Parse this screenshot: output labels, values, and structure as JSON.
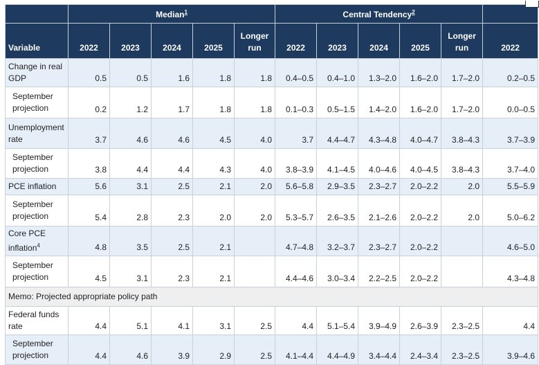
{
  "header": {
    "median_label": "Median",
    "median_footnote": "1",
    "ct_label": "Central Tendency",
    "ct_footnote": "2",
    "variable_label": "Variable",
    "columns": [
      "2022",
      "2023",
      "2024",
      "2025",
      "Longer run",
      "2022",
      "2023",
      "2024",
      "2025",
      "Longer run",
      "2022"
    ]
  },
  "rows": [
    {
      "label": "Change in real GDP",
      "type": "main",
      "shade": "blue",
      "values": [
        "0.5",
        "0.5",
        "1.6",
        "1.8",
        "1.8",
        "0.4–0.5",
        "0.4–1.0",
        "1.3–2.0",
        "1.6–2.0",
        "1.7–2.0",
        "0.2–0.5"
      ]
    },
    {
      "label": "September projection",
      "type": "sub",
      "shade": "white",
      "values": [
        "0.2",
        "1.2",
        "1.7",
        "1.8",
        "1.8",
        "0.1–0.3",
        "0.5–1.5",
        "1.4–2.0",
        "1.6–2.0",
        "1.7–2.0",
        "0.0–0.5"
      ]
    },
    {
      "label": "Unemployment rate",
      "type": "main",
      "shade": "blue",
      "values": [
        "3.7",
        "4.6",
        "4.6",
        "4.5",
        "4.0",
        "3.7",
        "4.4–4.7",
        "4.3–4.8",
        "4.0–4.7",
        "3.8–4.3",
        "3.7–3.9"
      ]
    },
    {
      "label": "September projection",
      "type": "sub",
      "shade": "white",
      "values": [
        "3.8",
        "4.4",
        "4.4",
        "4.3",
        "4.0",
        "3.8–3.9",
        "4.1–4.5",
        "4.0–4.6",
        "4.0–4.5",
        "3.8–4.3",
        "3.7–4.0"
      ]
    },
    {
      "label": "PCE inflation",
      "type": "main",
      "shade": "blue",
      "values": [
        "5.6",
        "3.1",
        "2.5",
        "2.1",
        "2.0",
        "5.6–5.8",
        "2.9–3.5",
        "2.3–2.7",
        "2.0–2.2",
        "2.0",
        "5.5–5.9"
      ]
    },
    {
      "label": "September projection",
      "type": "sub",
      "shade": "white",
      "values": [
        "5.4",
        "2.8",
        "2.3",
        "2.0",
        "2.0",
        "5.3–5.7",
        "2.6–3.5",
        "2.1–2.6",
        "2.0–2.2",
        "2.0",
        "5.0–6.2"
      ]
    },
    {
      "label": "Core PCE inflation",
      "footnote": "4",
      "type": "main",
      "shade": "blue",
      "values": [
        "4.8",
        "3.5",
        "2.5",
        "2.1",
        "",
        "4.7–4.8",
        "3.2–3.7",
        "2.3–2.7",
        "2.0–2.2",
        "",
        "4.6–5.0"
      ]
    },
    {
      "label": "September projection",
      "type": "sub",
      "shade": "white",
      "values": [
        "4.5",
        "3.1",
        "2.3",
        "2.1",
        "",
        "4.4–4.6",
        "3.0–3.4",
        "2.2–2.5",
        "2.0–2.2",
        "",
        "4.3–4.8"
      ]
    },
    {
      "label": "Memo: Projected appropriate policy path",
      "type": "memo",
      "shade": "memo",
      "values": []
    },
    {
      "label": "Federal funds rate",
      "type": "main",
      "shade": "white",
      "values": [
        "4.4",
        "5.1",
        "4.1",
        "3.1",
        "2.5",
        "4.4",
        "5.1–5.4",
        "3.9–4.9",
        "2.6–3.9",
        "2.3–2.5",
        "4.4"
      ]
    },
    {
      "label": "September projection",
      "type": "sub",
      "shade": "blue",
      "values": [
        "4.4",
        "4.6",
        "3.9",
        "2.9",
        "2.5",
        "4.1–4.4",
        "4.4–4.9",
        "3.4–4.4",
        "2.4–3.4",
        "2.3–2.5",
        "3.9–4.6"
      ]
    }
  ]
}
